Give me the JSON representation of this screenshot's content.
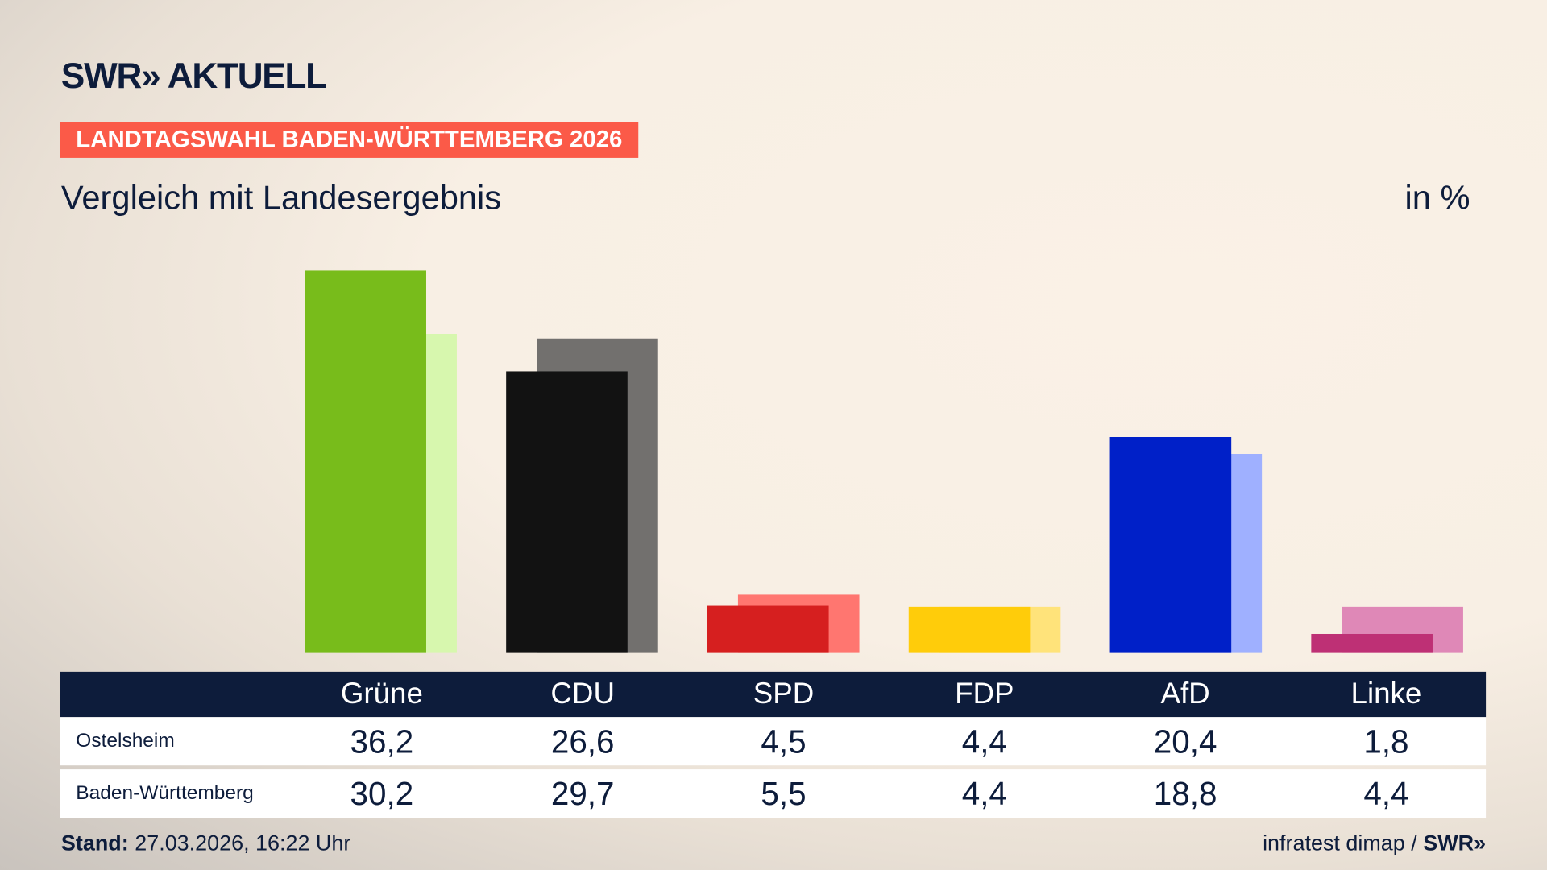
{
  "brand": {
    "logo": "SWR» AKTUELL",
    "source": "infratest dimap",
    "source_logo": "SWR»"
  },
  "header": {
    "kicker": "LANDTAGSWAHL BADEN-WÜRTTEMBERG 2026",
    "subtitle": "Vergleich mit Landesergebnis",
    "unit": "in %"
  },
  "footer": {
    "stand_label": "Stand:",
    "stand_value": "27.03.2026, 16:22 Uhr",
    "separator": "/"
  },
  "chart_data": {
    "type": "bar",
    "categories": [
      "Grüne",
      "CDU",
      "SPD",
      "FDP",
      "AfD",
      "Linke"
    ],
    "series": [
      {
        "name": "Ostelsheim",
        "values": [
          36.2,
          26.6,
          4.5,
          4.4,
          20.4,
          1.8
        ],
        "colors": [
          "#78bc1b",
          "#121212",
          "#d61f1f",
          "#ffcc0a",
          "#0020c8",
          "#be3075"
        ]
      },
      {
        "name": "Baden-Württemberg",
        "values": [
          30.2,
          29.7,
          5.5,
          4.4,
          18.8,
          4.4
        ],
        "colors": [
          "#d7f7ae",
          "#72706e",
          "#ff7670",
          "#ffe37a",
          "#9fb0ff",
          "#df88b7"
        ]
      }
    ],
    "value_labels": {
      "Ostelsheim": [
        "36,2",
        "26,6",
        "4,5",
        "4,4",
        "20,4",
        "1,8"
      ],
      "Baden-Württemberg": [
        "30,2",
        "29,7",
        "5,5",
        "4,4",
        "18,8",
        "4,4"
      ]
    },
    "grid": false
  }
}
